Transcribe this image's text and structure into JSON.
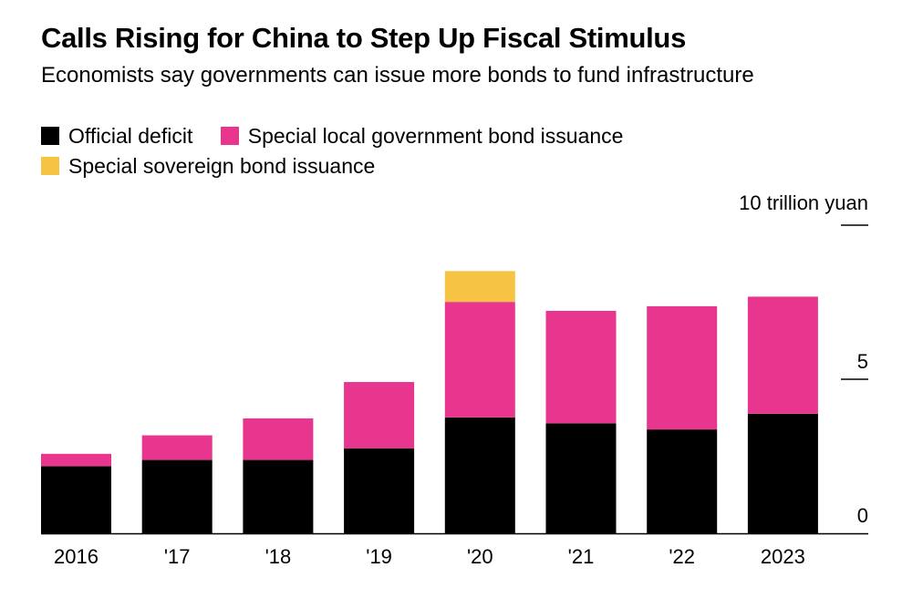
{
  "title": "Calls Rising for China to Step Up Fiscal Stimulus",
  "subtitle": "Economists say governments can issue more bonds to fund infrastructure",
  "colors": {
    "official_deficit": "#000000",
    "special_local": "#e8358d",
    "special_sovereign": "#f6c342"
  },
  "chart_data": {
    "type": "bar",
    "stacked": true,
    "categories": [
      "2016",
      "'17",
      "'18",
      "'19",
      "'20",
      "'21",
      "'22",
      "2023"
    ],
    "series": [
      {
        "name": "Official deficit",
        "values": [
          2.18,
          2.38,
          2.38,
          2.76,
          3.76,
          3.57,
          3.37,
          3.88
        ]
      },
      {
        "name": "Special local government bond issuance",
        "values": [
          0.4,
          0.8,
          1.35,
          2.15,
          3.75,
          3.65,
          4.0,
          3.8
        ]
      },
      {
        "name": "Special sovereign bond issuance",
        "values": [
          0,
          0,
          0,
          0,
          1.0,
          0,
          0,
          0
        ]
      }
    ],
    "ylabel": "10 trillion yuan",
    "ylim": [
      0,
      10
    ],
    "yticks": [
      0,
      5,
      10
    ],
    "ytick_labels": [
      "0",
      "5",
      ""
    ],
    "y_axis_position": "right",
    "legend_position": "top-left",
    "grid": false
  }
}
